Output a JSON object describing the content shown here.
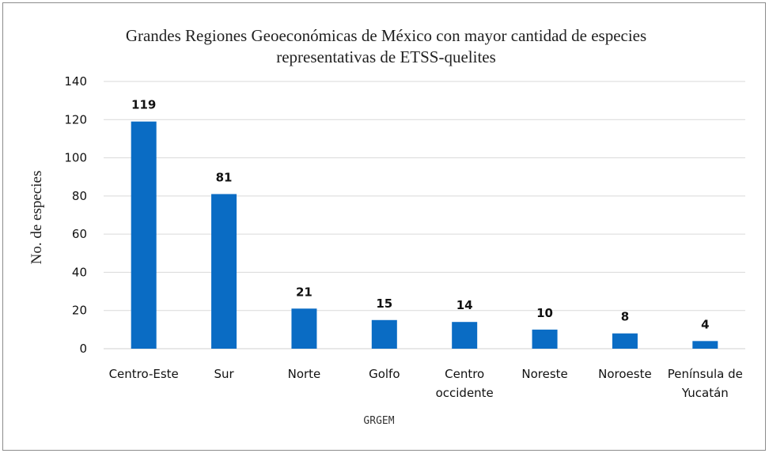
{
  "chart_data": {
    "type": "bar",
    "title": [
      "Grandes Regiones Geoeconómicas de México con mayor cantidad de especies",
      "representativas de ETSS-quelites"
    ],
    "xlabel": "GRGEM",
    "ylabel": "No. de especies",
    "categories": [
      [
        "Centro-Este"
      ],
      [
        "Sur"
      ],
      [
        "Norte"
      ],
      [
        "Golfo"
      ],
      [
        "Centro",
        "occidente"
      ],
      [
        "Noreste"
      ],
      [
        "Noroeste"
      ],
      [
        "Península de",
        "Yucatán"
      ]
    ],
    "values": [
      119,
      81,
      21,
      15,
      14,
      10,
      8,
      4
    ],
    "ylim": [
      0,
      140
    ],
    "yticks": [
      0,
      20,
      40,
      60,
      80,
      100,
      120,
      140
    ],
    "grid": true,
    "legend": "none",
    "colors": {
      "bar": "#0a6cc4",
      "grid": "#d9d9d9"
    }
  }
}
